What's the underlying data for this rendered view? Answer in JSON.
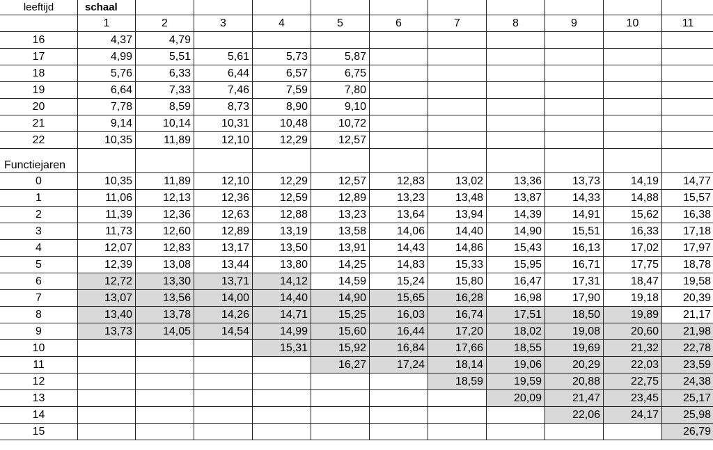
{
  "header": {
    "age_label": "leeftijd",
    "scale_label": "schaal",
    "scales": [
      "1",
      "2",
      "3",
      "4",
      "5",
      "6",
      "7",
      "8",
      "9",
      "10",
      "11"
    ]
  },
  "section_label": "Functiejaren",
  "age_rows": [
    {
      "label": "16",
      "values": [
        "4,37",
        "4,79",
        "",
        "",
        "",
        "",
        "",
        "",
        "",
        "",
        ""
      ]
    },
    {
      "label": "17",
      "values": [
        "4,99",
        "5,51",
        "5,61",
        "5,73",
        "5,87",
        "",
        "",
        "",
        "",
        "",
        ""
      ]
    },
    {
      "label": "18",
      "values": [
        "5,76",
        "6,33",
        "6,44",
        "6,57",
        "6,75",
        "",
        "",
        "",
        "",
        "",
        ""
      ]
    },
    {
      "label": "19",
      "values": [
        "6,64",
        "7,33",
        "7,46",
        "7,59",
        "7,80",
        "",
        "",
        "",
        "",
        "",
        ""
      ]
    },
    {
      "label": "20",
      "values": [
        "7,78",
        "8,59",
        "8,73",
        "8,90",
        "9,10",
        "",
        "",
        "",
        "",
        "",
        ""
      ]
    },
    {
      "label": "21",
      "values": [
        "9,14",
        "10,14",
        "10,31",
        "10,48",
        "10,72",
        "",
        "",
        "",
        "",
        "",
        ""
      ]
    },
    {
      "label": "22",
      "values": [
        "10,35",
        "11,89",
        "12,10",
        "12,29",
        "12,57",
        "",
        "",
        "",
        "",
        "",
        ""
      ]
    }
  ],
  "year_rows": [
    {
      "label": "0",
      "values": [
        "10,35",
        "11,89",
        "12,10",
        "12,29",
        "12,57",
        "12,83",
        "13,02",
        "13,36",
        "13,73",
        "14,19",
        "14,77"
      ],
      "shaded": []
    },
    {
      "label": "1",
      "values": [
        "11,06",
        "12,13",
        "12,36",
        "12,59",
        "12,89",
        "13,23",
        "13,48",
        "13,87",
        "14,33",
        "14,88",
        "15,57"
      ],
      "shaded": []
    },
    {
      "label": "2",
      "values": [
        "11,39",
        "12,36",
        "12,63",
        "12,88",
        "13,23",
        "13,64",
        "13,94",
        "14,39",
        "14,91",
        "15,62",
        "16,38"
      ],
      "shaded": []
    },
    {
      "label": "3",
      "values": [
        "11,73",
        "12,60",
        "12,89",
        "13,19",
        "13,58",
        "14,06",
        "14,40",
        "14,90",
        "15,51",
        "16,33",
        "17,18"
      ],
      "shaded": []
    },
    {
      "label": "4",
      "values": [
        "12,07",
        "12,83",
        "13,17",
        "13,50",
        "13,91",
        "14,43",
        "14,86",
        "15,43",
        "16,13",
        "17,02",
        "17,97"
      ],
      "shaded": []
    },
    {
      "label": "5",
      "values": [
        "12,39",
        "13,08",
        "13,44",
        "13,80",
        "14,25",
        "14,83",
        "15,33",
        "15,95",
        "16,71",
        "17,75",
        "18,78"
      ],
      "shaded": []
    },
    {
      "label": "6",
      "values": [
        "12,72",
        "13,30",
        "13,71",
        "14,12",
        "14,59",
        "15,24",
        "15,80",
        "16,47",
        "17,31",
        "18,47",
        "19,58"
      ],
      "shaded": [
        1,
        2,
        3,
        4
      ]
    },
    {
      "label": "7",
      "values": [
        "13,07",
        "13,56",
        "14,00",
        "14,40",
        "14,90",
        "15,65",
        "16,28",
        "16,98",
        "17,90",
        "19,18",
        "20,39"
      ],
      "shaded": [
        1,
        2,
        3,
        4,
        5,
        6,
        7
      ]
    },
    {
      "label": "8",
      "values": [
        "13,40",
        "13,78",
        "14,26",
        "14,71",
        "15,25",
        "16,03",
        "16,74",
        "17,51",
        "18,50",
        "19,89",
        "21,17"
      ],
      "shaded": [
        1,
        2,
        3,
        4,
        5,
        6,
        7,
        8,
        9,
        10
      ]
    },
    {
      "label": "9",
      "values": [
        "13,73",
        "14,05",
        "14,54",
        "14,99",
        "15,60",
        "16,44",
        "17,20",
        "18,02",
        "19,08",
        "20,60",
        "21,98"
      ],
      "shaded": [
        1,
        2,
        3,
        4,
        5,
        6,
        7,
        8,
        9,
        10,
        11
      ]
    },
    {
      "label": "10",
      "values": [
        "",
        "",
        "",
        "15,31",
        "15,92",
        "16,84",
        "17,66",
        "18,55",
        "19,69",
        "21,32",
        "22,78"
      ],
      "shaded": [
        4,
        5,
        6,
        7,
        8,
        9,
        10,
        11
      ]
    },
    {
      "label": "11",
      "values": [
        "",
        "",
        "",
        "",
        "16,27",
        "17,24",
        "18,14",
        "19,06",
        "20,29",
        "22,03",
        "23,59"
      ],
      "shaded": [
        5,
        6,
        7,
        8,
        9,
        10,
        11
      ]
    },
    {
      "label": "12",
      "values": [
        "",
        "",
        "",
        "",
        "",
        "",
        "18,59",
        "19,59",
        "20,88",
        "22,75",
        "24,38"
      ],
      "shaded": [
        7,
        8,
        9,
        10,
        11
      ]
    },
    {
      "label": "13",
      "values": [
        "",
        "",
        "",
        "",
        "",
        "",
        "",
        "20,09",
        "21,47",
        "23,45",
        "25,17"
      ],
      "shaded": [
        8,
        9,
        10,
        11
      ]
    },
    {
      "label": "14",
      "values": [
        "",
        "",
        "",
        "",
        "",
        "",
        "",
        "",
        "22,06",
        "24,17",
        "25,98"
      ],
      "shaded": [
        9,
        10,
        11
      ]
    },
    {
      "label": "15",
      "values": [
        "",
        "",
        "",
        "",
        "",
        "",
        "",
        "",
        "",
        "",
        "26,79"
      ],
      "shaded": [
        11
      ]
    }
  ],
  "colors": {
    "shade": "#d9d9d9",
    "border": "#222222"
  }
}
